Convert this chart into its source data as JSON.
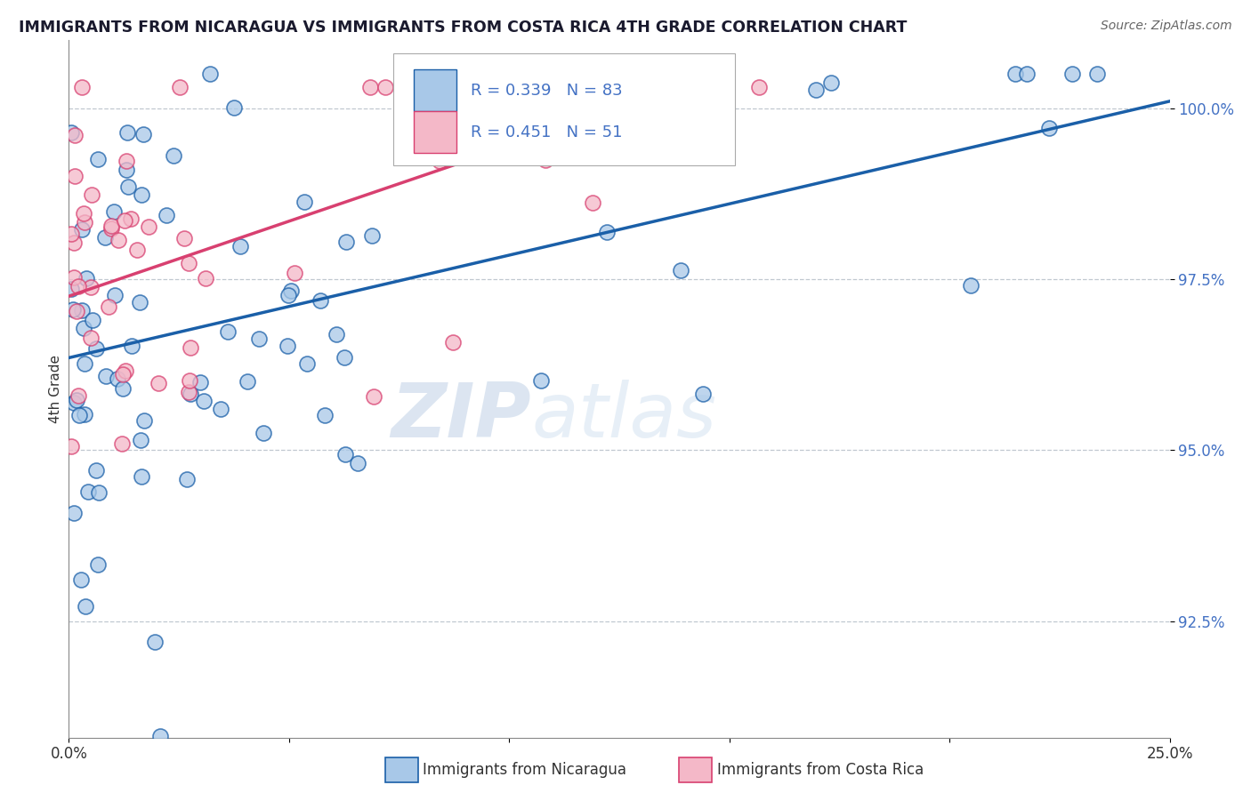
{
  "title": "IMMIGRANTS FROM NICARAGUA VS IMMIGRANTS FROM COSTA RICA 4TH GRADE CORRELATION CHART",
  "source": "Source: ZipAtlas.com",
  "xlabel_blue": "Immigrants from Nicaragua",
  "xlabel_pink": "Immigrants from Costa Rica",
  "ylabel": "4th Grade",
  "xlim": [
    0.0,
    0.25
  ],
  "ylim": [
    0.908,
    1.01
  ],
  "yticks": [
    0.925,
    0.95,
    0.975,
    1.0
  ],
  "ytick_labels": [
    "92.5%",
    "95.0%",
    "97.5%",
    "100.0%"
  ],
  "xticks": [
    0.0,
    0.05,
    0.1,
    0.15,
    0.2,
    0.25
  ],
  "xtick_labels": [
    "0.0%",
    "",
    "",
    "",
    "",
    "25.0%"
  ],
  "R_blue": 0.339,
  "N_blue": 83,
  "R_pink": 0.451,
  "N_pink": 51,
  "blue_color": "#a8c8e8",
  "pink_color": "#f4b8c8",
  "line_blue": "#1a5fa8",
  "line_pink": "#d84070",
  "watermark_zip": "ZIP",
  "watermark_atlas": "atlas",
  "blue_line_x0": 0.0,
  "blue_line_y0": 0.9635,
  "blue_line_x1": 0.25,
  "blue_line_y1": 1.001,
  "pink_line_x0": 0.0,
  "pink_line_y0": 0.9725,
  "pink_line_x1": 0.13,
  "pink_line_y1": 1.001
}
